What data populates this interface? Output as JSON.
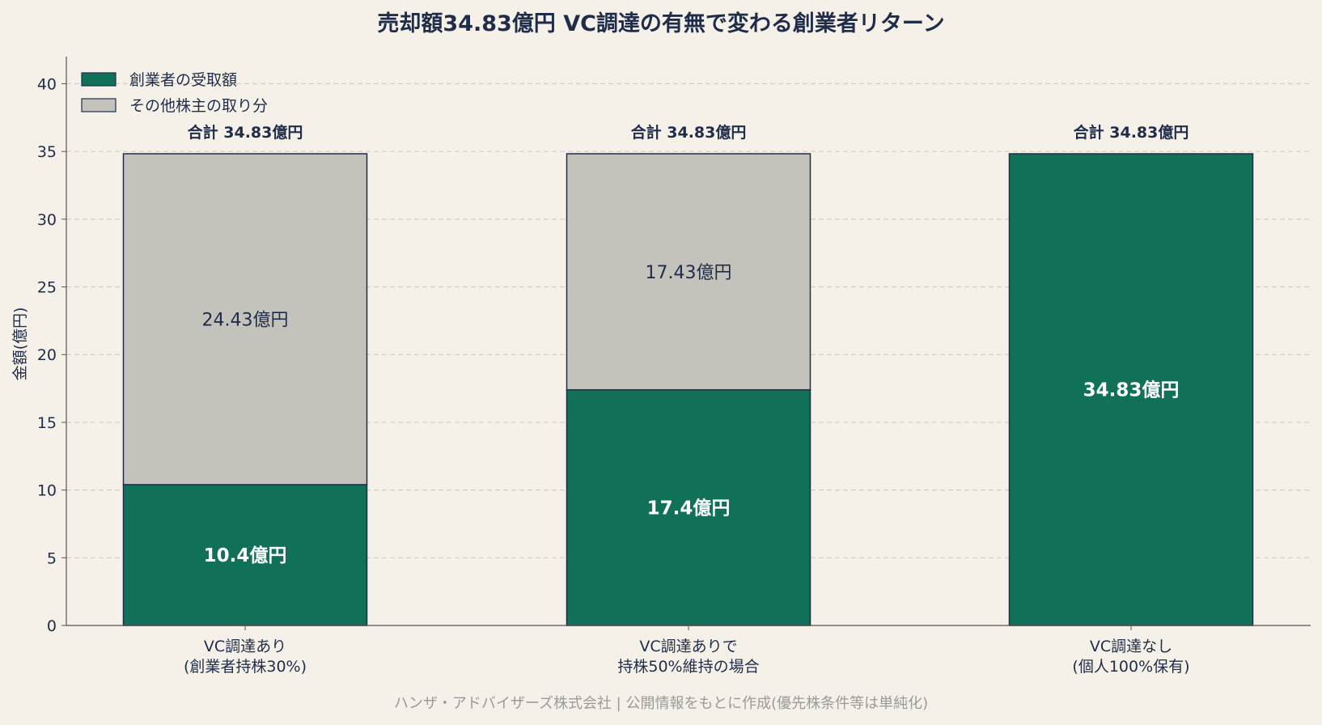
{
  "chart_data": {
    "type": "bar",
    "stacked": true,
    "title": "売却額34.83億円 VC調達の有無で変わる創業者リターン",
    "ylabel": "金額(億円)",
    "xlabel": "",
    "ylim": [
      0,
      42
    ],
    "yticks": [
      0,
      5,
      10,
      15,
      20,
      25,
      30,
      35,
      40
    ],
    "grid": true,
    "legend_position": "top-left",
    "categories": [
      [
        "VC調達あり",
        "(創業者持株30%)"
      ],
      [
        "VC調達ありで",
        "持株50%維持の場合"
      ],
      [
        "VC調達なし",
        "(個人100%保有)"
      ]
    ],
    "series": [
      {
        "name": "創業者の受取額",
        "color": "#117058",
        "values": [
          10.4,
          17.4,
          34.83
        ],
        "labels": [
          "10.4億円",
          "17.4億円",
          "34.83億円"
        ]
      },
      {
        "name": "その他株主の取り分",
        "color": "#c4c3bb",
        "values": [
          24.43,
          17.43,
          0
        ],
        "labels": [
          "24.43億円",
          "17.43億円",
          ""
        ]
      }
    ],
    "totals": [
      "合計 34.83億円",
      "合計 34.83億円",
      "合計 34.83億円"
    ],
    "edge_color": "#1f2d4b",
    "footer": "ハンザ・アドバイザーズ株式会社 | 公開情報をもとに作成(優先株条件等は単純化)"
  }
}
